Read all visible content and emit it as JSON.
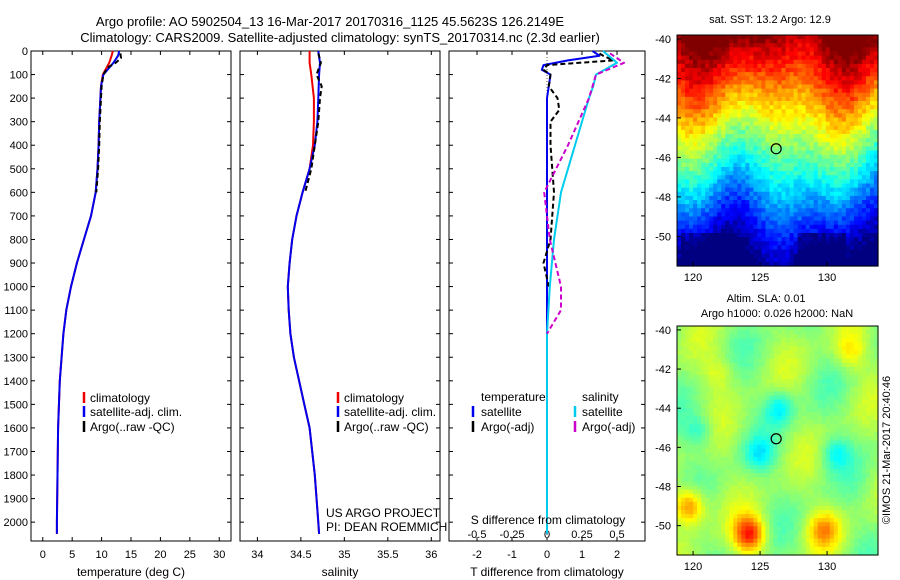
{
  "header": {
    "line1": "Argo profile: AO 5902504_13 16-Mar-2017 20170316_1125 45.5623S 126.2149E",
    "line2": "Climatology: CARS2009. Satellite-adjusted climatology: synTS_20170314.nc (2.3d earlier)"
  },
  "colors": {
    "climatology": "#ee0000",
    "satellite": "#0000ee",
    "argo": "#000000",
    "salinity_sat": "#00ccee",
    "salinity_argo": "#cc00cc"
  },
  "chart_data": [
    {
      "type": "line",
      "name": "temperature",
      "xlabel": "temperature (deg C)",
      "ylabel": "",
      "xlim": [
        -2,
        32
      ],
      "ylim": [
        2080,
        0
      ],
      "x_ticks": [
        0,
        5,
        10,
        15,
        20,
        25,
        30
      ],
      "y_ticks": [
        0,
        100,
        200,
        300,
        400,
        500,
        600,
        700,
        800,
        900,
        1000,
        1100,
        1200,
        1300,
        1400,
        1500,
        1600,
        1700,
        1800,
        1900,
        2000
      ],
      "legend": [
        "climatology",
        "satellite-adj. clim.",
        "Argo(..raw -QC)"
      ],
      "series": [
        {
          "name": "climatology",
          "depth": [
            0,
            20,
            50,
            100,
            150,
            200,
            300,
            400,
            500,
            600,
            700,
            800,
            900,
            1000,
            1100,
            1200,
            1300,
            1400,
            1600,
            1800,
            2000,
            2050
          ],
          "values": [
            11.9,
            11.7,
            11.3,
            10.2,
            9.9,
            9.8,
            9.6,
            9.5,
            9.3,
            9.0,
            8.2,
            7.0,
            5.8,
            4.8,
            4.0,
            3.5,
            3.2,
            2.9,
            2.6,
            2.5,
            2.4,
            2.4
          ]
        },
        {
          "name": "satellite-adj. clim.",
          "depth": [
            0,
            20,
            50,
            100,
            150,
            200,
            300,
            400,
            500,
            600,
            700,
            800,
            900,
            1000,
            1100,
            1200,
            1300,
            1400,
            1600,
            1800,
            2000,
            2050
          ],
          "values": [
            13.0,
            12.8,
            12.0,
            10.3,
            9.9,
            9.8,
            9.6,
            9.5,
            9.3,
            9.0,
            8.2,
            7.0,
            5.8,
            4.8,
            4.0,
            3.5,
            3.2,
            2.9,
            2.6,
            2.5,
            2.4,
            2.4
          ]
        },
        {
          "name": "Argo(..raw -QC)",
          "depth": [
            10,
            30,
            50,
            70,
            100,
            150,
            200,
            300,
            400,
            500,
            600
          ],
          "values": [
            13.2,
            13.3,
            12.4,
            11.0,
            10.3,
            10.0,
            9.9,
            9.7,
            9.6,
            9.4,
            9.1
          ]
        }
      ]
    },
    {
      "type": "line",
      "name": "salinity",
      "xlabel": "salinity",
      "xlim": [
        33.8,
        36.1
      ],
      "ylim": [
        2080,
        0
      ],
      "x_ticks": [
        34,
        34.5,
        35,
        35.5,
        36
      ],
      "legend": [
        "climatology",
        "satellite-adj. clim.",
        "Argo(..raw -QC)"
      ],
      "series": [
        {
          "name": "climatology",
          "depth": [
            0,
            50,
            100,
            200,
            300,
            400,
            500,
            600,
            700,
            800,
            900,
            1000,
            1100,
            1200,
            1300,
            1400,
            1500,
            1600,
            1800,
            2000,
            2050
          ],
          "values": [
            34.6,
            34.6,
            34.62,
            34.65,
            34.65,
            34.64,
            34.6,
            34.52,
            34.45,
            34.4,
            34.37,
            34.35,
            34.36,
            34.38,
            34.42,
            34.48,
            34.54,
            34.6,
            34.66,
            34.7,
            34.71
          ]
        },
        {
          "name": "satellite-adj. clim.",
          "depth": [
            0,
            50,
            100,
            200,
            300,
            400,
            500,
            600,
            700,
            800,
            900,
            1000,
            1100,
            1200,
            1300,
            1400,
            1500,
            1600,
            1800,
            2000,
            2050
          ],
          "values": [
            34.7,
            34.72,
            34.71,
            34.7,
            34.69,
            34.66,
            34.6,
            34.52,
            34.45,
            34.4,
            34.37,
            34.35,
            34.36,
            34.38,
            34.42,
            34.48,
            34.54,
            34.6,
            34.66,
            34.7,
            34.71
          ]
        },
        {
          "name": "Argo(..raw -QC)",
          "depth": [
            10,
            50,
            100,
            150,
            200,
            300,
            400,
            500,
            600
          ],
          "values": [
            34.7,
            34.73,
            34.68,
            34.74,
            34.72,
            34.7,
            34.66,
            34.62,
            34.55
          ]
        }
      ],
      "annotation": [
        "US ARGO PROJECT",
        "PI: DEAN ROEMMICH"
      ]
    },
    {
      "type": "line",
      "name": "difference",
      "xlabel": "T difference from climatology",
      "xlabel_top": "S difference from climatology",
      "xlim": [
        -2.8,
        2.8
      ],
      "ylim": [
        2080,
        0
      ],
      "x_ticks": [
        -2,
        -1,
        0,
        1,
        2
      ],
      "x_ticks_top": [
        "-0.5",
        "-0.25",
        "0",
        "0.25",
        "0.5"
      ],
      "legend_title_left": "temperature",
      "legend_title_right": "salinity",
      "legend": [
        "satellite",
        "Argo(-adj)",
        "satellite",
        "Argo(-adj)"
      ],
      "series": [
        {
          "name": "temperature satellite",
          "depth": [
            0,
            20,
            40,
            60,
            80,
            100,
            150,
            200,
            300,
            500,
            800,
            1200,
            1600,
            2050
          ],
          "values": [
            1.3,
            1.5,
            0.6,
            -0.1,
            -0.15,
            0.1,
            0.05,
            0.0,
            0.0,
            0.0,
            0.0,
            0.0,
            0.0,
            0.0
          ]
        },
        {
          "name": "temperature Argo(-adj)",
          "depth": [
            10,
            20,
            40,
            60,
            80,
            100,
            150,
            200,
            250,
            300,
            400,
            600,
            800,
            900,
            1000
          ],
          "values": [
            1.5,
            1.6,
            1.9,
            0.0,
            -0.1,
            0.1,
            0.05,
            0.3,
            0.35,
            0.1,
            0.1,
            0.2,
            0.1,
            -0.1,
            0.05
          ]
        },
        {
          "name": "salinity satellite",
          "depth": [
            0,
            50,
            100,
            150,
            200,
            400,
            600,
            800,
            1000,
            1200,
            1500,
            1800,
            2050
          ],
          "values": [
            0.4,
            0.5,
            0.35,
            0.33,
            0.3,
            0.2,
            0.1,
            0.05,
            0.02,
            0.0,
            0.0,
            0.0,
            0.0
          ]
        },
        {
          "name": "salinity Argo(-adj)",
          "depth": [
            10,
            50,
            100,
            200,
            400,
            600,
            800,
            1000,
            1100,
            1200
          ],
          "values": [
            0.45,
            0.55,
            0.35,
            0.3,
            0.15,
            -0.02,
            0.02,
            0.1,
            0.1,
            0.0
          ]
        }
      ]
    },
    {
      "type": "heatmap",
      "name": "sst-map",
      "title": "sat. SST: 13.2  Argo: 12.9",
      "x_ticks": [
        120,
        125,
        130
      ],
      "y_ticks": [
        -40,
        -42,
        -44,
        -46,
        -48,
        -50
      ],
      "xlim": [
        118.8,
        133.8
      ],
      "ylim": [
        -51.5,
        -39.8
      ],
      "marker": {
        "lon": 126.2,
        "lat": -45.56
      }
    },
    {
      "type": "heatmap",
      "name": "sla-map",
      "title_line1": "Altim. SLA: 0.01",
      "title_line2": "Argo h1000: 0.026 h2000: NaN",
      "x_ticks": [
        120,
        125,
        130
      ],
      "y_ticks": [
        -40,
        -42,
        -44,
        -46,
        -48,
        -50
      ],
      "xlim": [
        118.8,
        133.8
      ],
      "ylim": [
        -51.5,
        -39.8
      ],
      "marker": {
        "lon": 126.2,
        "lat": -45.56
      }
    }
  ],
  "footer": {
    "stamp": "©IMOS 21-Mar-2017 20:40:46"
  }
}
